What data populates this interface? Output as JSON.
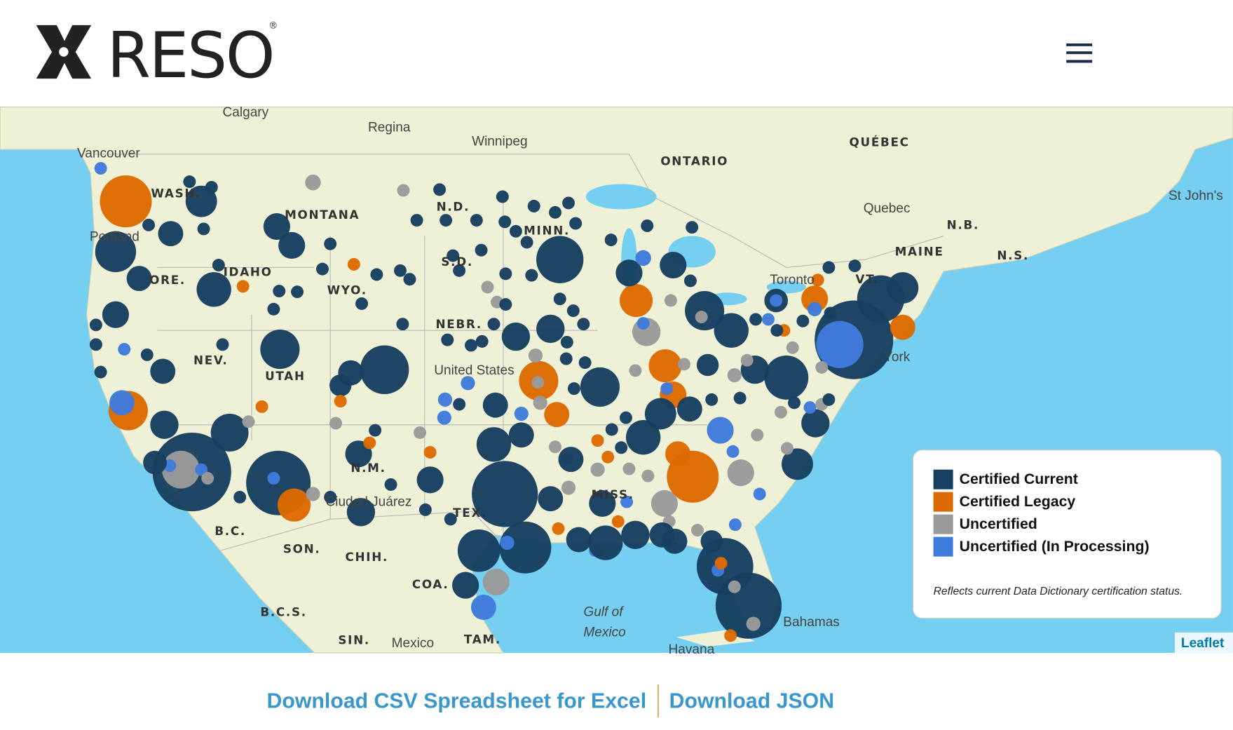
{
  "header": {
    "logo": "RESO",
    "registered": "®"
  },
  "map": {
    "labels": [
      "Calgary",
      "Regina",
      "Vancouver",
      "Winnipeg",
      "ONTARIO",
      "QUÉBEC",
      "St John's",
      "Quebec",
      "N.B.",
      "N.S.",
      "MAINE",
      "VT.",
      "MINN.",
      "N.D.",
      "S.D.",
      "MONTANA",
      "WASH.",
      "Portland",
      "IDAHO",
      "ORE.",
      "WYO.",
      "NEV.",
      "UTAH",
      "NEBR.",
      "United States",
      "N.M.",
      "Ciudad Juárez",
      "TEX.",
      "B.C.",
      "SON.",
      "CHIH.",
      "COA.",
      "B.C.S.",
      "SIN.",
      "Mexico",
      "TAM.",
      "Gulf of",
      "Mexico",
      "Havana",
      "Bahamas",
      "Toronto",
      "York",
      "MISS."
    ]
  },
  "legend": {
    "items": [
      {
        "label": "Certified Current",
        "color": "#173f5f"
      },
      {
        "label": "Certified Legacy",
        "color": "#dd6a00"
      },
      {
        "label": "Uncertified",
        "color": "#9a9a9a"
      },
      {
        "label": "Uncertified (In Processing)",
        "color": "#3f7bdc"
      }
    ],
    "note": "Reflects current Data Dictionary certification status."
  },
  "attribution": "Leaflet",
  "links": [
    "Download CSV Spreadsheet for Excel",
    "Download JSON"
  ]
}
